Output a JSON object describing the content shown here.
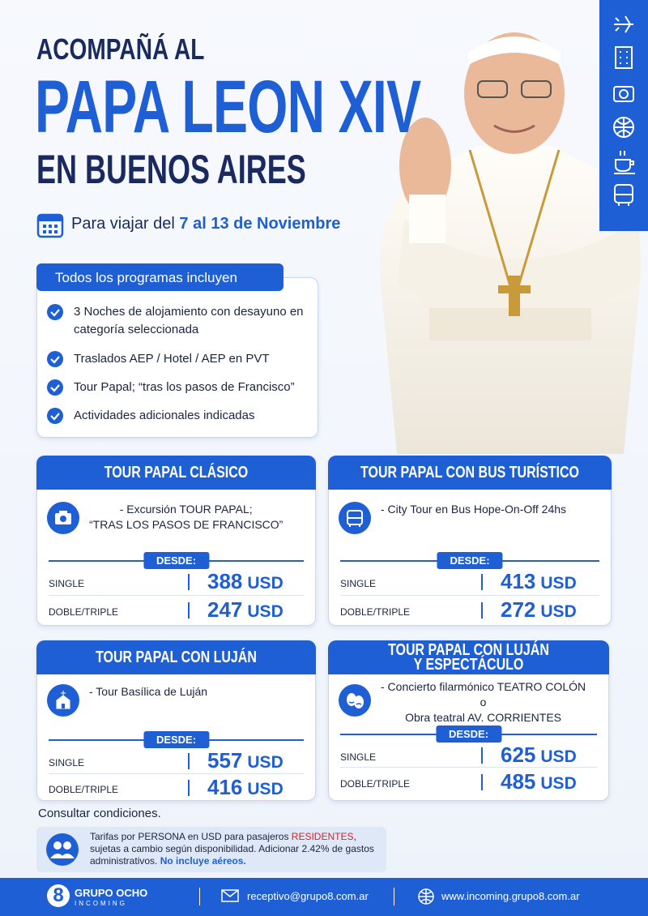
{
  "header": {
    "line1": "ACOMPAÑÁ AL",
    "line2": "PAPA LEON XIV",
    "line3": "EN BUENOS AIRES"
  },
  "dates": {
    "prefix": "Para viajar del",
    "highlight": "7 al 13 de Noviembre"
  },
  "includes": {
    "title": "Todos los programas incluyen",
    "items": [
      "3 Noches de alojamiento con desayuno en categoría seleccionada",
      "Traslados AEP / Hotel / AEP en PVT",
      "Tour Papal; “tras los pasos de Francisco”",
      "Actividades adicionales indicadas"
    ]
  },
  "tours": [
    {
      "title": [
        "TOUR PAPAL CLÁSICO"
      ],
      "description": [
        "- Excursión TOUR PAPAL;",
        "“TRAS LOS PASOS DE FRANCISCO”"
      ],
      "from": "DESDE:",
      "prices": [
        {
          "label": "SINGLE",
          "price": 388,
          "currency": "USD"
        },
        {
          "label": "DOBLE/TRIPLE",
          "price": 247,
          "currency": "USD"
        }
      ]
    },
    {
      "title": [
        "TOUR PAPAL CON BUS TURÍSTICO"
      ],
      "description": [
        "- City Tour en Bus Hope-On-Off 24hs"
      ],
      "from": "DESDE:",
      "prices": [
        {
          "label": "SINGLE",
          "price": 413,
          "currency": "USD"
        },
        {
          "label": "DOBLE/TRIPLE",
          "price": 272,
          "currency": "USD"
        }
      ]
    },
    {
      "title": [
        "TOUR PAPAL CON LUJÁN"
      ],
      "description": [
        "- Tour Basílica de Luján"
      ],
      "from": "DESDE:",
      "prices": [
        {
          "label": "SINGLE",
          "price": 557,
          "currency": "USD"
        },
        {
          "label": "DOBLE/TRIPLE",
          "price": 416,
          "currency": "USD"
        }
      ]
    },
    {
      "title": [
        "TOUR PAPAL CON LUJÁN",
        "Y ESPECTÁCULO"
      ],
      "description": [
        "- Concierto filarmónico TEATRO COLÓN",
        "o",
        "Obra teatral AV. CORRIENTES"
      ],
      "from": "DESDE:",
      "prices": [
        {
          "label": "SINGLE",
          "price": 625,
          "currency": "USD"
        },
        {
          "label": "DOBLE/TRIPLE",
          "price": 485,
          "currency": "USD"
        }
      ]
    }
  ],
  "conditions": "Consultar condiciones.",
  "note": {
    "part1": "Tarifas por PERSONA en USD para pasajeros ",
    "highlight": "RESIDENTES",
    "part2": ", sujetas a cambio según disponibilidad. Adicionar 2.42% de gastos administrativos. ",
    "emphasis": "No incluye aéreos."
  },
  "footer": {
    "logo": "8",
    "brand": "GRUPO OCHO",
    "sub": "INCOMING",
    "email": "receptivo@grupo8.com.ar",
    "web": "www.incoming.grupo8.com.ar"
  }
}
